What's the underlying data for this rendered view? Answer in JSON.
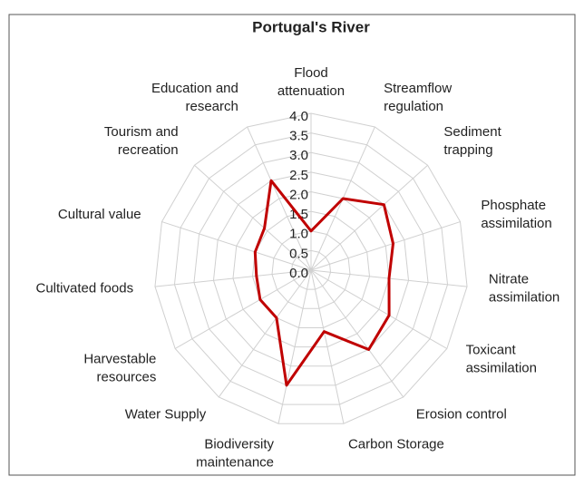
{
  "chart_data": {
    "type": "radar",
    "title": "Portugal's River",
    "categories": [
      "Flood attenuation",
      "Streamflow regulation",
      "Sediment trapping",
      "Phosphate assimilation",
      "Nitrate assimilation",
      "Toxicant assimilation",
      "Erosion control",
      "Carbon Storage",
      "Biodiversity maintenance",
      "Water Supply",
      "Harvestable resources",
      "Cultivated foods",
      "Cultural value",
      "Tourism and recreation",
      "Education and research"
    ],
    "series": [
      {
        "name": "Portugal's River",
        "color": "#c00000",
        "values": [
          1.0,
          2.0,
          2.5,
          2.2,
          2.0,
          2.3,
          2.5,
          1.6,
          3.0,
          1.5,
          1.5,
          1.4,
          1.5,
          1.6,
          2.5
        ]
      }
    ],
    "ylim": [
      0,
      4
    ],
    "yticks": [
      {
        "value": 0,
        "label": "0.0"
      },
      0.5,
      {
        "value": 1,
        "label": "1.0"
      },
      1.5,
      {
        "value": 2,
        "label": "2.0"
      },
      2.5,
      {
        "value": 3,
        "label": "3.0"
      },
      3.5,
      {
        "value": 4,
        "label": "4.0"
      }
    ],
    "grid": true
  }
}
